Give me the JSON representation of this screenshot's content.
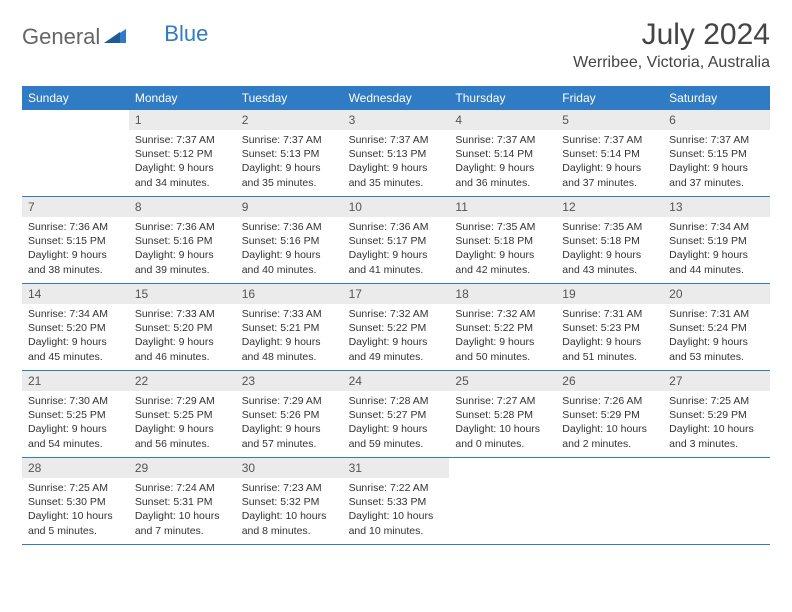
{
  "logo": {
    "word1": "General",
    "word2": "Blue"
  },
  "title": "July 2024",
  "location": "Werribee, Victoria, Australia",
  "colors": {
    "header_bg": "#2f7bc4",
    "header_text": "#ffffff",
    "daynum_bg": "#ebebeb",
    "daynum_text": "#555555",
    "body_text": "#333333",
    "divider": "#2f7bc4",
    "background": "#ffffff"
  },
  "typography": {
    "month_title_fontsize": 30,
    "location_fontsize": 16,
    "day_header_fontsize": 12,
    "daynum_fontsize": 12,
    "body_fontsize": 10.5
  },
  "day_names": [
    "Sunday",
    "Monday",
    "Tuesday",
    "Wednesday",
    "Thursday",
    "Friday",
    "Saturday"
  ],
  "weeks": [
    [
      {
        "num": "",
        "sunrise": "",
        "sunset": "",
        "daylight": ""
      },
      {
        "num": "1",
        "sunrise": "7:37 AM",
        "sunset": "5:12 PM",
        "daylight": "9 hours and 34 minutes."
      },
      {
        "num": "2",
        "sunrise": "7:37 AM",
        "sunset": "5:13 PM",
        "daylight": "9 hours and 35 minutes."
      },
      {
        "num": "3",
        "sunrise": "7:37 AM",
        "sunset": "5:13 PM",
        "daylight": "9 hours and 35 minutes."
      },
      {
        "num": "4",
        "sunrise": "7:37 AM",
        "sunset": "5:14 PM",
        "daylight": "9 hours and 36 minutes."
      },
      {
        "num": "5",
        "sunrise": "7:37 AM",
        "sunset": "5:14 PM",
        "daylight": "9 hours and 37 minutes."
      },
      {
        "num": "6",
        "sunrise": "7:37 AM",
        "sunset": "5:15 PM",
        "daylight": "9 hours and 37 minutes."
      }
    ],
    [
      {
        "num": "7",
        "sunrise": "7:36 AM",
        "sunset": "5:15 PM",
        "daylight": "9 hours and 38 minutes."
      },
      {
        "num": "8",
        "sunrise": "7:36 AM",
        "sunset": "5:16 PM",
        "daylight": "9 hours and 39 minutes."
      },
      {
        "num": "9",
        "sunrise": "7:36 AM",
        "sunset": "5:16 PM",
        "daylight": "9 hours and 40 minutes."
      },
      {
        "num": "10",
        "sunrise": "7:36 AM",
        "sunset": "5:17 PM",
        "daylight": "9 hours and 41 minutes."
      },
      {
        "num": "11",
        "sunrise": "7:35 AM",
        "sunset": "5:18 PM",
        "daylight": "9 hours and 42 minutes."
      },
      {
        "num": "12",
        "sunrise": "7:35 AM",
        "sunset": "5:18 PM",
        "daylight": "9 hours and 43 minutes."
      },
      {
        "num": "13",
        "sunrise": "7:34 AM",
        "sunset": "5:19 PM",
        "daylight": "9 hours and 44 minutes."
      }
    ],
    [
      {
        "num": "14",
        "sunrise": "7:34 AM",
        "sunset": "5:20 PM",
        "daylight": "9 hours and 45 minutes."
      },
      {
        "num": "15",
        "sunrise": "7:33 AM",
        "sunset": "5:20 PM",
        "daylight": "9 hours and 46 minutes."
      },
      {
        "num": "16",
        "sunrise": "7:33 AM",
        "sunset": "5:21 PM",
        "daylight": "9 hours and 48 minutes."
      },
      {
        "num": "17",
        "sunrise": "7:32 AM",
        "sunset": "5:22 PM",
        "daylight": "9 hours and 49 minutes."
      },
      {
        "num": "18",
        "sunrise": "7:32 AM",
        "sunset": "5:22 PM",
        "daylight": "9 hours and 50 minutes."
      },
      {
        "num": "19",
        "sunrise": "7:31 AM",
        "sunset": "5:23 PM",
        "daylight": "9 hours and 51 minutes."
      },
      {
        "num": "20",
        "sunrise": "7:31 AM",
        "sunset": "5:24 PM",
        "daylight": "9 hours and 53 minutes."
      }
    ],
    [
      {
        "num": "21",
        "sunrise": "7:30 AM",
        "sunset": "5:25 PM",
        "daylight": "9 hours and 54 minutes."
      },
      {
        "num": "22",
        "sunrise": "7:29 AM",
        "sunset": "5:25 PM",
        "daylight": "9 hours and 56 minutes."
      },
      {
        "num": "23",
        "sunrise": "7:29 AM",
        "sunset": "5:26 PM",
        "daylight": "9 hours and 57 minutes."
      },
      {
        "num": "24",
        "sunrise": "7:28 AM",
        "sunset": "5:27 PM",
        "daylight": "9 hours and 59 minutes."
      },
      {
        "num": "25",
        "sunrise": "7:27 AM",
        "sunset": "5:28 PM",
        "daylight": "10 hours and 0 minutes."
      },
      {
        "num": "26",
        "sunrise": "7:26 AM",
        "sunset": "5:29 PM",
        "daylight": "10 hours and 2 minutes."
      },
      {
        "num": "27",
        "sunrise": "7:25 AM",
        "sunset": "5:29 PM",
        "daylight": "10 hours and 3 minutes."
      }
    ],
    [
      {
        "num": "28",
        "sunrise": "7:25 AM",
        "sunset": "5:30 PM",
        "daylight": "10 hours and 5 minutes."
      },
      {
        "num": "29",
        "sunrise": "7:24 AM",
        "sunset": "5:31 PM",
        "daylight": "10 hours and 7 minutes."
      },
      {
        "num": "30",
        "sunrise": "7:23 AM",
        "sunset": "5:32 PM",
        "daylight": "10 hours and 8 minutes."
      },
      {
        "num": "31",
        "sunrise": "7:22 AM",
        "sunset": "5:33 PM",
        "daylight": "10 hours and 10 minutes."
      },
      {
        "num": "",
        "sunrise": "",
        "sunset": "",
        "daylight": ""
      },
      {
        "num": "",
        "sunrise": "",
        "sunset": "",
        "daylight": ""
      },
      {
        "num": "",
        "sunrise": "",
        "sunset": "",
        "daylight": ""
      }
    ]
  ],
  "labels": {
    "sunrise": "Sunrise:",
    "sunset": "Sunset:",
    "daylight": "Daylight:"
  }
}
